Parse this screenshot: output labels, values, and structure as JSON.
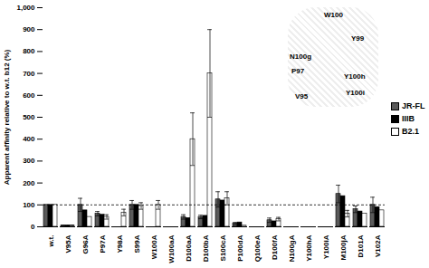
{
  "chart_data": {
    "type": "bar",
    "y_label": "Apparent affinity relative to w.t. b12 (%)",
    "categories": [
      "w.t.",
      "V95A",
      "G96A",
      "P97A",
      "Y98A",
      "S99A",
      "W100A",
      "W100aA",
      "D100aA",
      "D100bA",
      "S100cA",
      "P100dA",
      "Q100eA",
      "D100fA",
      "N100gA",
      "Y100hA",
      "Y100iA",
      "M100jA",
      "D101A",
      "V102A"
    ],
    "series": [
      {
        "name": "JR-FL",
        "color": "#5a5a5a",
        "values": [
          100,
          5,
          100,
          60,
          0,
          100,
          0,
          0,
          45,
          45,
          125,
          15,
          0,
          30,
          0,
          0,
          0,
          150,
          80,
          100
        ],
        "errors": [
          null,
          3,
          30,
          10,
          null,
          20,
          null,
          null,
          10,
          8,
          35,
          5,
          null,
          10,
          null,
          null,
          null,
          40,
          15,
          35
        ]
      },
      {
        "name": "IIIB",
        "color": "#000000",
        "values": [
          100,
          5,
          75,
          55,
          0,
          100,
          0,
          0,
          40,
          50,
          120,
          20,
          0,
          25,
          0,
          0,
          0,
          140,
          70,
          90
        ],
        "errors": [
          null,
          3,
          null,
          null,
          null,
          null,
          null,
          null,
          null,
          null,
          null,
          null,
          null,
          null,
          null,
          null,
          null,
          null,
          null,
          null
        ]
      },
      {
        "name": "B2.1",
        "color": "#ffffff",
        "values": [
          100,
          5,
          45,
          45,
          65,
          95,
          100,
          0,
          400,
          700,
          130,
          5,
          0,
          35,
          0,
          0,
          0,
          60,
          60,
          75
        ],
        "errors": [
          null,
          3,
          null,
          10,
          15,
          15,
          20,
          null,
          120,
          200,
          30,
          null,
          null,
          8,
          null,
          null,
          null,
          15,
          null,
          null
        ]
      }
    ],
    "reference_line": 100,
    "annotations": [
      "W100",
      "Y99",
      "N100g",
      "P97",
      "V95",
      "Y100h",
      "Y100i"
    ],
    "ylim": [
      0,
      1000
    ],
    "yticks": [
      0,
      100,
      200,
      300,
      400,
      500,
      600,
      700,
      800,
      900,
      1000
    ],
    "legend": "right"
  }
}
